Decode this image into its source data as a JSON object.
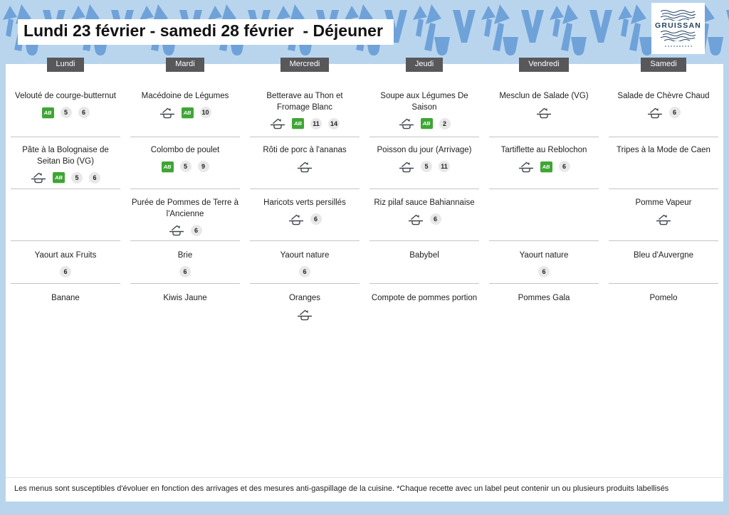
{
  "header": {
    "title": "Lundi 23 février - samedi 28 février  - Déjeuner",
    "logo_text": "GRUISSAN"
  },
  "labels": {
    "bio_ab": "AB"
  },
  "icon_legend": {
    "fait-maison": "homemade dish icon (roof over pan)",
    "bio-ab": "organic Agriculture Biologique green label"
  },
  "colors": {
    "background": "#b9d5ee",
    "pattern_blue": "#6fa2d8",
    "day_button": "#58585b",
    "bio_green": "#3fa535",
    "badge_bg": "#e8e8e8",
    "logo_navy": "#24415f"
  },
  "columns": [
    {
      "day": "Lundi",
      "cells": [
        {
          "dish": "Velouté de courge-butternut",
          "icons": [
            "bio-ab"
          ],
          "badges": [
            "5",
            "6"
          ]
        },
        {
          "dish": "Pâte à la Bolognaise de Seitan Bio (VG)",
          "icons": [
            "fait-maison",
            "bio-ab"
          ],
          "badges": [
            "5",
            "6"
          ]
        },
        {
          "dish": "",
          "icons": [],
          "badges": []
        },
        {
          "dish": "Yaourt aux Fruits",
          "icons": [],
          "badges": [
            "6"
          ]
        },
        {
          "dish": "Banane",
          "icons": [],
          "badges": []
        }
      ]
    },
    {
      "day": "Mardi",
      "cells": [
        {
          "dish": "Macédoine de Légumes",
          "icons": [
            "fait-maison",
            "bio-ab"
          ],
          "badges": [
            "10"
          ]
        },
        {
          "dish": "Colombo de poulet",
          "icons": [
            "bio-ab"
          ],
          "badges": [
            "5",
            "9"
          ]
        },
        {
          "dish": "Purée de Pommes de Terre à l'Ancienne",
          "icons": [
            "fait-maison"
          ],
          "badges": [
            "6"
          ]
        },
        {
          "dish": "Brie",
          "icons": [],
          "badges": [
            "6"
          ]
        },
        {
          "dish": "Kiwis Jaune",
          "icons": [],
          "badges": []
        }
      ]
    },
    {
      "day": "Mercredi",
      "cells": [
        {
          "dish": "Betterave au Thon et Fromage Blanc",
          "icons": [
            "fait-maison",
            "bio-ab"
          ],
          "badges": [
            "11",
            "14"
          ]
        },
        {
          "dish": "Rôti de porc à l'ananas",
          "icons": [
            "fait-maison"
          ],
          "badges": []
        },
        {
          "dish": "Haricots verts persillés",
          "icons": [
            "fait-maison"
          ],
          "badges": [
            "6"
          ]
        },
        {
          "dish": "Yaourt nature",
          "icons": [],
          "badges": [
            "6"
          ]
        },
        {
          "dish": "Oranges",
          "icons": [
            "fait-maison"
          ],
          "badges": []
        }
      ]
    },
    {
      "day": "Jeudi",
      "cells": [
        {
          "dish": "Soupe aux Légumes De Saison",
          "icons": [
            "fait-maison",
            "bio-ab"
          ],
          "badges": [
            "2"
          ]
        },
        {
          "dish": "Poisson du jour (Arrivage)",
          "icons": [
            "fait-maison"
          ],
          "badges": [
            "5",
            "11"
          ]
        },
        {
          "dish": "Riz pilaf sauce Bahiannaise",
          "icons": [
            "fait-maison"
          ],
          "badges": [
            "6"
          ]
        },
        {
          "dish": "Babybel",
          "icons": [],
          "badges": []
        },
        {
          "dish": "Compote de pommes portion",
          "icons": [],
          "badges": []
        }
      ]
    },
    {
      "day": "Vendredi",
      "cells": [
        {
          "dish": "Mesclun de Salade (VG)",
          "icons": [
            "fait-maison"
          ],
          "badges": []
        },
        {
          "dish": "Tartiflette au Reblochon",
          "icons": [
            "fait-maison",
            "bio-ab"
          ],
          "badges": [
            "6"
          ]
        },
        {
          "dish": "",
          "icons": [],
          "badges": []
        },
        {
          "dish": "Yaourt nature",
          "icons": [],
          "badges": [
            "6"
          ]
        },
        {
          "dish": "Pommes Gala",
          "icons": [],
          "badges": []
        }
      ]
    },
    {
      "day": "Samedi",
      "cells": [
        {
          "dish": "Salade de Chèvre Chaud",
          "icons": [
            "fait-maison"
          ],
          "badges": [
            "6"
          ]
        },
        {
          "dish": "Tripes  à la Mode de Caen",
          "icons": [],
          "badges": []
        },
        {
          "dish": "Pomme Vapeur",
          "icons": [
            "fait-maison"
          ],
          "badges": []
        },
        {
          "dish": "Bleu d'Auvergne",
          "icons": [],
          "badges": []
        },
        {
          "dish": "Pomelo",
          "icons": [],
          "badges": []
        }
      ]
    }
  ],
  "footer": {
    "note": "Les menus sont susceptibles d'évoluer en fonction des arrivages et des mesures anti-gaspillage de la cuisine. *Chaque recette avec un label peut contenir un ou plusieurs produits labellisés"
  }
}
